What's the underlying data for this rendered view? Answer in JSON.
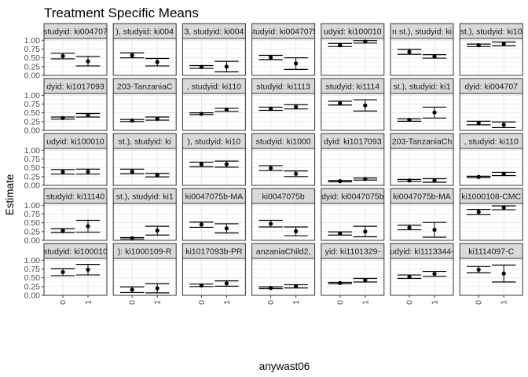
{
  "chart_data": {
    "type": "faceted-pointrange",
    "title": "Treatment Specific Means",
    "xlabel": "anywast06",
    "ylabel": "Estimate",
    "x_categories": [
      "0",
      "1"
    ],
    "y_ticks": [
      "0.00",
      "0.25",
      "0.50",
      "0.75",
      "1.00"
    ],
    "ylim": [
      0,
      1.05
    ],
    "grid": true,
    "panels": [
      {
        "label": "studyid: ki004707",
        "points": [
          {
            "est": 0.55,
            "lo": 0.47,
            "hi": 0.63
          },
          {
            "est": 0.4,
            "lo": 0.27,
            "hi": 0.54
          }
        ]
      },
      {
        "label": "), studyid: ki004",
        "points": [
          {
            "est": 0.57,
            "lo": 0.5,
            "hi": 0.64
          },
          {
            "est": 0.38,
            "lo": 0.27,
            "hi": 0.48
          }
        ]
      },
      {
        "label": "3, studyid: ki004",
        "points": [
          {
            "est": 0.24,
            "lo": 0.2,
            "hi": 0.28
          },
          {
            "est": 0.25,
            "lo": 0.1,
            "hi": 0.4
          }
        ]
      },
      {
        "label": "studyid: ki0047075",
        "points": [
          {
            "est": 0.51,
            "lo": 0.45,
            "hi": 0.57
          },
          {
            "est": 0.34,
            "lo": 0.17,
            "hi": 0.5
          }
        ]
      },
      {
        "label": "udyid: ki100010",
        "points": [
          {
            "est": 0.86,
            "lo": 0.82,
            "hi": 0.91
          },
          {
            "est": 0.96,
            "lo": 0.92,
            "hi": 0.99
          }
        ]
      },
      {
        "label": "n st.), studyid: ki",
        "points": [
          {
            "est": 0.67,
            "lo": 0.6,
            "hi": 0.74
          },
          {
            "est": 0.54,
            "lo": 0.49,
            "hi": 0.59
          }
        ]
      },
      {
        "label": "st.), studyid: ki10",
        "points": [
          {
            "est": 0.86,
            "lo": 0.82,
            "hi": 0.89
          },
          {
            "est": 0.9,
            "lo": 0.84,
            "hi": 0.95
          }
        ]
      },
      {
        "label": "studyid: ki100",
        "points": [
          {
            "est": 0.56,
            "lo": 0.48,
            "hi": 0.64
          },
          {
            "est": 0.44,
            "lo": 0.33,
            "hi": 0.55
          }
        ]
      },
      {
        "label": "dyid: ki1017093",
        "points": [
          {
            "est": 0.35,
            "lo": 0.32,
            "hi": 0.38
          },
          {
            "est": 0.43,
            "lo": 0.38,
            "hi": 0.48
          }
        ]
      },
      {
        "label": "203-TanzaniaC",
        "points": [
          {
            "est": 0.28,
            "lo": 0.25,
            "hi": 0.31
          },
          {
            "est": 0.33,
            "lo": 0.29,
            "hi": 0.38
          }
        ]
      },
      {
        "label": ", studyid: ki110",
        "points": [
          {
            "est": 0.47,
            "lo": 0.45,
            "hi": 0.5
          },
          {
            "est": 0.59,
            "lo": 0.54,
            "hi": 0.63
          }
        ]
      },
      {
        "label": "studyid: ki1113",
        "points": [
          {
            "est": 0.61,
            "lo": 0.57,
            "hi": 0.66
          },
          {
            "est": 0.67,
            "lo": 0.61,
            "hi": 0.73
          }
        ]
      },
      {
        "label": "studyid: ki1114",
        "points": [
          {
            "est": 0.77,
            "lo": 0.72,
            "hi": 0.83
          },
          {
            "est": 0.71,
            "lo": 0.55,
            "hi": 0.87
          }
        ]
      },
      {
        "label": "st.), studyid: ki1",
        "points": [
          {
            "est": 0.3,
            "lo": 0.26,
            "hi": 0.33
          },
          {
            "est": 0.51,
            "lo": 0.35,
            "hi": 0.66
          }
        ]
      },
      {
        "label": "dyid: ki004707",
        "points": [
          {
            "est": 0.21,
            "lo": 0.16,
            "hi": 0.26
          },
          {
            "est": 0.16,
            "lo": 0.08,
            "hi": 0.24
          }
        ]
      },
      {
        "label": "), studyid: ki004",
        "points": [
          {
            "est": 0.22,
            "lo": 0.16,
            "hi": 0.27
          },
          {
            "est": 0.19,
            "lo": 0.12,
            "hi": 0.26
          }
        ]
      },
      {
        "label": "udyid: ki100010",
        "points": [
          {
            "est": 0.38,
            "lo": 0.32,
            "hi": 0.45
          },
          {
            "est": 0.39,
            "lo": 0.32,
            "hi": 0.46
          }
        ]
      },
      {
        "label": "st.), studyid: ki",
        "points": [
          {
            "est": 0.39,
            "lo": 0.33,
            "hi": 0.46
          },
          {
            "est": 0.29,
            "lo": 0.24,
            "hi": 0.34
          }
        ]
      },
      {
        "label": "), studyid: ki10",
        "points": [
          {
            "est": 0.6,
            "lo": 0.53,
            "hi": 0.66
          },
          {
            "est": 0.6,
            "lo": 0.52,
            "hi": 0.69
          }
        ]
      },
      {
        "label": "studyid: ki1000",
        "points": [
          {
            "est": 0.49,
            "lo": 0.42,
            "hi": 0.56
          },
          {
            "est": 0.33,
            "lo": 0.25,
            "hi": 0.41
          }
        ]
      },
      {
        "label": "dyid: ki1017093",
        "points": [
          {
            "est": 0.12,
            "lo": 0.1,
            "hi": 0.14
          },
          {
            "est": 0.18,
            "lo": 0.15,
            "hi": 0.21
          }
        ]
      },
      {
        "label": "203-TanzaniaCh",
        "points": [
          {
            "est": 0.14,
            "lo": 0.11,
            "hi": 0.17
          },
          {
            "est": 0.14,
            "lo": 0.09,
            "hi": 0.19
          }
        ]
      },
      {
        "label": ", studyid: ki110",
        "points": [
          {
            "est": 0.24,
            "lo": 0.22,
            "hi": 0.26
          },
          {
            "est": 0.33,
            "lo": 0.28,
            "hi": 0.37
          }
        ]
      },
      {
        "label": "studyid: ki1113",
        "points": [
          {
            "est": 0.21,
            "lo": 0.18,
            "hi": 0.24
          },
          {
            "est": 0.17,
            "lo": 0.11,
            "hi": 0.22
          }
        ]
      },
      {
        "label": "studyid: ki11140",
        "points": [
          {
            "est": 0.28,
            "lo": 0.22,
            "hi": 0.33
          },
          {
            "est": 0.4,
            "lo": 0.23,
            "hi": 0.57
          }
        ]
      },
      {
        "label": "st.), studyid: ki1",
        "points": [
          {
            "est": 0.06,
            "lo": 0.04,
            "hi": 0.08
          },
          {
            "est": 0.28,
            "lo": 0.15,
            "hi": 0.4
          }
        ]
      },
      {
        "label": "ki0047075b-MA",
        "points": [
          {
            "est": 0.45,
            "lo": 0.37,
            "hi": 0.52
          },
          {
            "est": 0.34,
            "lo": 0.21,
            "hi": 0.47
          }
        ]
      },
      {
        "label": "ki0047075b",
        "points": [
          {
            "est": 0.47,
            "lo": 0.38,
            "hi": 0.57
          },
          {
            "est": 0.26,
            "lo": 0.13,
            "hi": 0.38
          }
        ]
      },
      {
        "label": "dyid: ki0047075b",
        "points": [
          {
            "est": 0.19,
            "lo": 0.15,
            "hi": 0.24
          },
          {
            "est": 0.25,
            "lo": 0.1,
            "hi": 0.4
          }
        ]
      },
      {
        "label": "ki0047075b-MA",
        "points": [
          {
            "est": 0.36,
            "lo": 0.3,
            "hi": 0.43
          },
          {
            "est": 0.3,
            "lo": 0.09,
            "hi": 0.51
          }
        ]
      },
      {
        "label": "ki1000108-CMC",
        "points": [
          {
            "est": 0.81,
            "lo": 0.73,
            "hi": 0.88
          },
          {
            "est": 0.93,
            "lo": 0.87,
            "hi": 0.98
          }
        ]
      },
      {
        "label": "studyid: ki10001",
        "points": [
          {
            "est": 0.43,
            "lo": 0.33,
            "hi": 0.53
          },
          {
            "est": 0.35,
            "lo": 0.3,
            "hi": 0.41
          }
        ]
      },
      {
        "label": "studyid: ki100010",
        "points": [
          {
            "est": 0.66,
            "lo": 0.56,
            "hi": 0.76
          },
          {
            "est": 0.73,
            "lo": 0.58,
            "hi": 0.88
          }
        ]
      },
      {
        "label": "): ki1000109-R",
        "points": [
          {
            "est": 0.16,
            "lo": 0.08,
            "hi": 0.24
          },
          {
            "est": 0.2,
            "lo": 0.07,
            "hi": 0.33
          }
        ]
      },
      {
        "label": "ki1017093b-PR",
        "points": [
          {
            "est": 0.28,
            "lo": 0.25,
            "hi": 0.32
          },
          {
            "est": 0.34,
            "lo": 0.26,
            "hi": 0.41
          }
        ]
      },
      {
        "label": "anzaniaChild2,",
        "points": [
          {
            "est": 0.21,
            "lo": 0.19,
            "hi": 0.24
          },
          {
            "est": 0.26,
            "lo": 0.21,
            "hi": 0.3
          }
        ]
      },
      {
        "label": "yid: ki1101329-",
        "points": [
          {
            "est": 0.35,
            "lo": 0.33,
            "hi": 0.37
          },
          {
            "est": 0.43,
            "lo": 0.38,
            "hi": 0.48
          }
        ]
      },
      {
        "label": "studyid: ki1113344-G",
        "points": [
          {
            "est": 0.53,
            "lo": 0.48,
            "hi": 0.58
          },
          {
            "est": 0.61,
            "lo": 0.54,
            "hi": 0.68
          }
        ]
      },
      {
        "label": "ki1114097-C",
        "points": [
          {
            "est": 0.73,
            "lo": 0.64,
            "hi": 0.82
          },
          {
            "est": 0.62,
            "lo": 0.38,
            "hi": 0.86
          }
        ]
      },
      {
        "label": "studyid: ki11409",
        "points": [
          {
            "est": 0.29,
            "lo": 0.25,
            "hi": 0.33
          },
          {
            "est": 0.35,
            "lo": 0.2,
            "hi": 0.51
          }
        ]
      }
    ]
  }
}
